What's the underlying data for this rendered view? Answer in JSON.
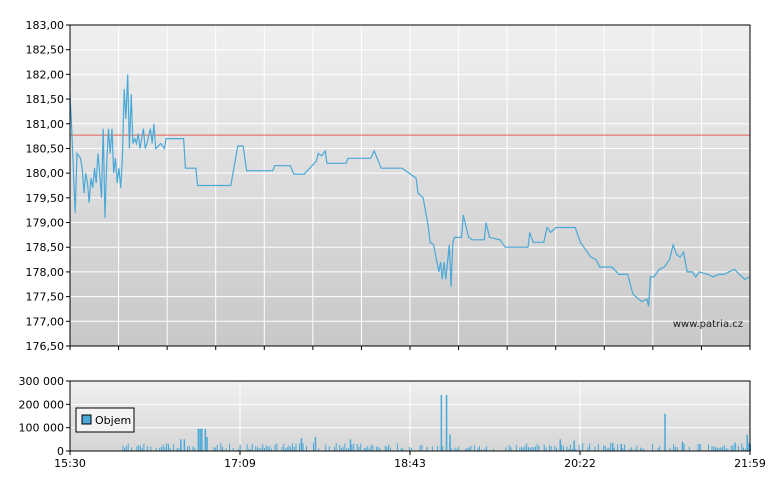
{
  "chart_data": [
    {
      "type": "line",
      "title": "",
      "xlabel": "",
      "ylabel": "",
      "ylim": [
        176.5,
        183.0
      ],
      "y_tick_labels": [
        "183,00",
        "182,50",
        "182,00",
        "181,50",
        "181,00",
        "180,50",
        "180,00",
        "179,50",
        "179,00",
        "178,50",
        "178,00",
        "177,50",
        "177,00",
        "176,50"
      ],
      "x_tick_labels": [
        "15:30",
        "17:09",
        "18:43",
        "20:22",
        "21:59"
      ],
      "reference_line": {
        "value": 180.77,
        "color": "#e06050"
      },
      "series": [
        {
          "color": "#4aa8d8",
          "points": [
            [
              "15:30",
              181.6
            ],
            [
              "15:31",
              180.9
            ],
            [
              "15:32",
              180.0
            ],
            [
              "15:33",
              179.2
            ],
            [
              "15:34",
              180.4
            ],
            [
              "15:36",
              180.3
            ],
            [
              "15:37",
              180.1
            ],
            [
              "15:38",
              179.6
            ],
            [
              "15:39",
              180.0
            ],
            [
              "15:40",
              179.8
            ],
            [
              "15:41",
              179.4
            ],
            [
              "15:42",
              179.9
            ],
            [
              "15:43",
              179.7
            ],
            [
              "15:44",
              180.1
            ],
            [
              "15:45",
              179.8
            ],
            [
              "15:46",
              180.4
            ],
            [
              "15:47",
              180.0
            ],
            [
              "15:48",
              179.5
            ],
            [
              "15:49",
              180.9
            ],
            [
              "15:50",
              179.1
            ],
            [
              "15:51",
              180.2
            ],
            [
              "15:52",
              180.9
            ],
            [
              "15:53",
              180.4
            ],
            [
              "15:54",
              180.9
            ],
            [
              "15:55",
              180.0
            ],
            [
              "15:56",
              180.3
            ],
            [
              "15:57",
              179.8
            ],
            [
              "15:58",
              180.1
            ],
            [
              "15:59",
              179.7
            ],
            [
              "16:00",
              180.3
            ],
            [
              "16:01",
              181.7
            ],
            [
              "16:02",
              181.1
            ],
            [
              "16:03",
              182.0
            ],
            [
              "16:04",
              180.5
            ],
            [
              "16:05",
              181.6
            ],
            [
              "16:06",
              180.6
            ],
            [
              "16:07",
              180.7
            ],
            [
              "16:08",
              180.6
            ],
            [
              "16:09",
              180.8
            ],
            [
              "16:10",
              180.5
            ],
            [
              "16:11",
              180.7
            ],
            [
              "16:12",
              180.9
            ],
            [
              "16:13",
              180.5
            ],
            [
              "16:14",
              180.6
            ],
            [
              "16:16",
              180.9
            ],
            [
              "16:17",
              180.6
            ],
            [
              "16:18",
              181.0
            ],
            [
              "16:19",
              180.5
            ],
            [
              "16:22",
              180.6
            ],
            [
              "16:24",
              180.5
            ],
            [
              "16:25",
              180.7
            ],
            [
              "16:30",
              180.7
            ],
            [
              "16:35",
              180.7
            ],
            [
              "16:36",
              180.1
            ],
            [
              "16:42",
              180.1
            ],
            [
              "16:43",
              179.75
            ],
            [
              "16:50",
              179.75
            ],
            [
              "17:02",
              179.75
            ],
            [
              "17:06",
              180.55
            ],
            [
              "17:09",
              180.55
            ],
            [
              "17:11",
              180.05
            ],
            [
              "17:26",
              180.05
            ],
            [
              "17:27",
              180.15
            ],
            [
              "17:36",
              180.15
            ],
            [
              "17:38",
              179.98
            ],
            [
              "17:44",
              179.98
            ],
            [
              "17:51",
              180.25
            ],
            [
              "17:52",
              180.4
            ],
            [
              "17:54",
              180.35
            ],
            [
              "17:56",
              180.45
            ],
            [
              "17:57",
              180.2
            ],
            [
              "18:08",
              180.2
            ],
            [
              "18:09",
              180.3
            ],
            [
              "18:22",
              180.3
            ],
            [
              "18:24",
              180.45
            ],
            [
              "18:28",
              180.1
            ],
            [
              "18:40",
              180.1
            ],
            [
              "18:42",
              180.05
            ],
            [
              "18:48",
              179.9
            ],
            [
              "18:49",
              179.6
            ],
            [
              "18:52",
              179.5
            ],
            [
              "18:53",
              179.3
            ],
            [
              "18:55",
              178.9
            ],
            [
              "18:56",
              178.6
            ],
            [
              "18:58",
              178.55
            ],
            [
              "19:01",
              178.0
            ],
            [
              "19:02",
              178.2
            ],
            [
              "19:03",
              177.85
            ],
            [
              "19:04",
              178.2
            ],
            [
              "19:05",
              177.85
            ],
            [
              "19:07",
              178.55
            ],
            [
              "19:08",
              177.7
            ],
            [
              "19:09",
              178.6
            ],
            [
              "19:10",
              178.7
            ],
            [
              "19:14",
              178.7
            ],
            [
              "19:15",
              179.15
            ],
            [
              "19:18",
              178.7
            ],
            [
              "19:20",
              178.65
            ],
            [
              "19:27",
              178.65
            ],
            [
              "19:28",
              179.0
            ],
            [
              "19:30",
              178.7
            ],
            [
              "19:36",
              178.65
            ],
            [
              "19:39",
              178.5
            ],
            [
              "19:52",
              178.5
            ],
            [
              "19:53",
              178.8
            ],
            [
              "19:55",
              178.6
            ],
            [
              "20:01",
              178.6
            ],
            [
              "20:03",
              178.9
            ],
            [
              "20:05",
              178.8
            ],
            [
              "20:08",
              178.9
            ],
            [
              "20:19",
              178.9
            ],
            [
              "20:22",
              178.6
            ],
            [
              "20:24",
              178.5
            ],
            [
              "20:26",
              178.4
            ],
            [
              "20:28",
              178.3
            ],
            [
              "20:31",
              178.25
            ],
            [
              "20:33",
              178.1
            ],
            [
              "20:40",
              178.1
            ],
            [
              "20:44",
              177.95
            ],
            [
              "20:49",
              177.95
            ],
            [
              "20:52",
              177.55
            ],
            [
              "20:57",
              177.4
            ],
            [
              "21:00",
              177.45
            ],
            [
              "21:01",
              177.3
            ],
            [
              "21:02",
              177.9
            ],
            [
              "21:04",
              177.9
            ],
            [
              "21:07",
              178.05
            ],
            [
              "21:10",
              178.1
            ],
            [
              "21:13",
              178.25
            ],
            [
              "21:15",
              178.55
            ],
            [
              "21:17",
              178.35
            ],
            [
              "21:19",
              178.3
            ],
            [
              "21:21",
              178.4
            ],
            [
              "21:23",
              178.0
            ],
            [
              "21:26",
              178.0
            ],
            [
              "21:28",
              177.9
            ],
            [
              "21:30",
              178.0
            ],
            [
              "21:35",
              177.95
            ],
            [
              "21:38",
              177.9
            ],
            [
              "21:41",
              177.95
            ],
            [
              "21:44",
              177.95
            ],
            [
              "21:47",
              178.0
            ],
            [
              "21:50",
              178.05
            ],
            [
              "21:53",
              177.95
            ],
            [
              "21:56",
              177.85
            ],
            [
              "21:59",
              177.9
            ]
          ]
        }
      ],
      "watermark": "www.patria.cz",
      "grid": true
    },
    {
      "type": "bar",
      "title": "",
      "ylim": [
        0,
        300000
      ],
      "y_tick_labels": [
        "300 000",
        "200 000",
        "100 000",
        "0"
      ],
      "x_tick_labels": [
        "15:30",
        "17:09",
        "18:43",
        "20:22",
        "21:59"
      ],
      "legend": {
        "position": "left",
        "entries": [
          {
            "name": "Objem",
            "color": "#4aa8d8"
          }
        ]
      },
      "series": [
        {
          "name": "Objem",
          "color": "#4aa8d8",
          "points": [
            [
              "16:33",
              50000
            ],
            [
              "16:35",
              50000
            ],
            [
              "16:43",
              95000
            ],
            [
              "16:44",
              95000
            ],
            [
              "16:45",
              95000
            ],
            [
              "16:47",
              95000
            ],
            [
              "16:48",
              60000
            ],
            [
              "17:42",
              55000
            ],
            [
              "17:50",
              60000
            ],
            [
              "18:10",
              50000
            ],
            [
              "19:02",
              240000
            ],
            [
              "19:05",
              240000
            ],
            [
              "19:07",
              70000
            ],
            [
              "20:10",
              50000
            ],
            [
              "20:18",
              45000
            ],
            [
              "20:40",
              35000
            ],
            [
              "20:45",
              30000
            ],
            [
              "21:10",
              160000
            ],
            [
              "21:20",
              40000
            ],
            [
              "21:30",
              30000
            ],
            [
              "21:50",
              35000
            ],
            [
              "21:57",
              70000
            ],
            [
              "21:58",
              35000
            ]
          ]
        }
      ],
      "grid": true
    }
  ]
}
